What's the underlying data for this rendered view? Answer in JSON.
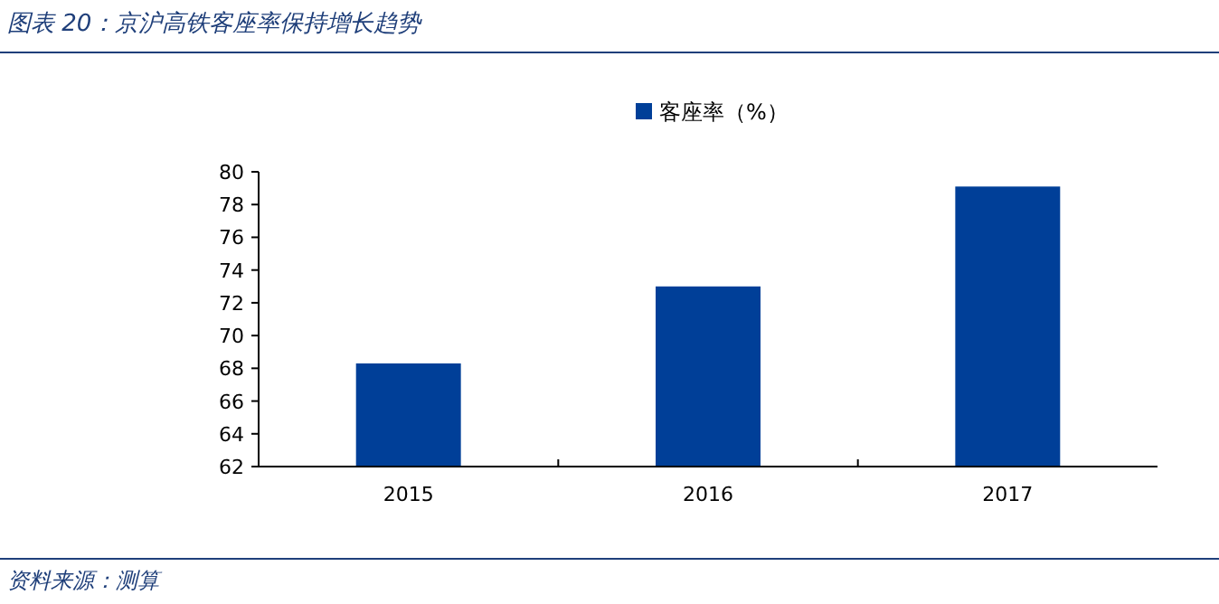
{
  "chart_data": {
    "type": "bar",
    "title": "图表 20：京沪高铁客座率保持增长趋势",
    "categories": [
      "2015",
      "2016",
      "2017"
    ],
    "series": [
      {
        "name": "客座率（%）",
        "color": "#003f98",
        "values": [
          68.3,
          73.0,
          79.1
        ]
      }
    ],
    "ylim": [
      62,
      80
    ],
    "yticks": [
      62,
      64,
      66,
      68,
      70,
      72,
      74,
      76,
      78,
      80
    ],
    "legend": "top",
    "grid": false,
    "annotations": [
      "资料来源：测算"
    ]
  }
}
